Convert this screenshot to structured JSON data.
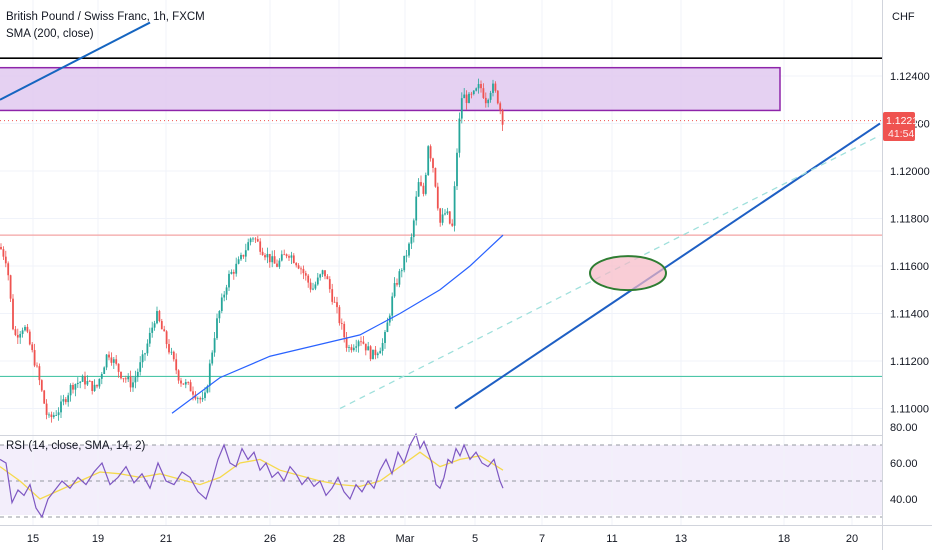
{
  "header": {
    "symbol_line": "British Pound / Swiss Franc, 1h, FXCM",
    "sma_label": "SMA (200, close)",
    "currency": "CHF",
    "rsi_label": "RSI (14, close, SMA, 14, 2)"
  },
  "price_badge": {
    "price": "1.12212",
    "countdown": "41:54",
    "color": "#ef5350"
  },
  "chart_data": [
    {
      "type": "candlestick",
      "title": "British Pound / Swiss Franc, 1h, FXCM",
      "y_axis": {
        "ticks": [
          "1.12400",
          "1.12200",
          "1.12000",
          "1.11800",
          "1.11600",
          "1.11400",
          "1.11200",
          "1.11000"
        ]
      },
      "x_axis": {
        "ticks": [
          "15",
          "19",
          "21",
          "26",
          "28",
          "Mar",
          "5",
          "7",
          "11",
          "13",
          "18",
          "20"
        ]
      },
      "last_price": 1.12212,
      "indicators": [
        "SMA (200, close)"
      ],
      "price_path": [
        [
          0,
          1.1168
        ],
        [
          7,
          1.1162
        ],
        [
          14,
          1.113
        ],
        [
          24,
          1.1135
        ],
        [
          36,
          1.1118
        ],
        [
          48,
          1.1095
        ],
        [
          60,
          1.11
        ],
        [
          72,
          1.111
        ],
        [
          84,
          1.1112
        ],
        [
          96,
          1.1108
        ],
        [
          108,
          1.1124
        ],
        [
          120,
          1.1115
        ],
        [
          132,
          1.111
        ],
        [
          144,
          1.1122
        ],
        [
          156,
          1.114
        ],
        [
          168,
          1.1126
        ],
        [
          180,
          1.1112
        ],
        [
          192,
          1.1108
        ],
        [
          204,
          1.1102
        ],
        [
          216,
          1.1135
        ],
        [
          228,
          1.1155
        ],
        [
          240,
          1.1162
        ],
        [
          252,
          1.1173
        ],
        [
          264,
          1.1166
        ],
        [
          276,
          1.116
        ],
        [
          288,
          1.1166
        ],
        [
          300,
          1.116
        ],
        [
          312,
          1.115
        ],
        [
          324,
          1.1158
        ],
        [
          336,
          1.1142
        ],
        [
          348,
          1.1125
        ],
        [
          360,
          1.113
        ],
        [
          372,
          1.1122
        ],
        [
          384,
          1.1128
        ],
        [
          394,
          1.115
        ],
        [
          404,
          1.1162
        ],
        [
          412,
          1.1172
        ],
        [
          418,
          1.1195
        ],
        [
          424,
          1.119
        ],
        [
          428,
          1.1212
        ],
        [
          434,
          1.12
        ],
        [
          440,
          1.1178
        ],
        [
          446,
          1.1183
        ],
        [
          452,
          1.1175
        ],
        [
          458,
          1.1215
        ],
        [
          462,
          1.1232
        ],
        [
          468,
          1.123
        ],
        [
          474,
          1.1232
        ],
        [
          480,
          1.1236
        ],
        [
          486,
          1.123
        ],
        [
          492,
          1.1236
        ],
        [
          498,
          1.123
        ],
        [
          503,
          1.1221
        ]
      ],
      "sma_path": [
        [
          172,
          1.1098
        ],
        [
          220,
          1.1113
        ],
        [
          270,
          1.1122
        ],
        [
          320,
          1.1127
        ],
        [
          360,
          1.1131
        ],
        [
          400,
          1.114
        ],
        [
          440,
          1.115
        ],
        [
          470,
          1.116
        ],
        [
          503,
          1.1173
        ]
      ],
      "annotations": {
        "resistance_zone": [
          1.12255,
          1.12435
        ],
        "horizontal_lines": [
          {
            "price": 1.12475,
            "color": "#000000"
          },
          {
            "price": 1.1173,
            "color": "#f4a4a4"
          },
          {
            "price": 1.11135,
            "color": "#4dc6a8"
          }
        ],
        "trendlines": [
          {
            "from": [
              0,
              1.123
            ],
            "to": [
              150,
              1.12625
            ],
            "color": "#1565c0",
            "style": "solid"
          },
          {
            "from": [
              455,
              1.11
            ],
            "to": [
              880,
              1.122
            ],
            "color": "#1e5fc4",
            "style": "solid"
          },
          {
            "from": [
              340,
              1.11
            ],
            "to": [
              880,
              1.1215
            ],
            "color": "#9fe0dc",
            "style": "dashed"
          }
        ],
        "target_ellipse_center": [
          628,
          1.1157
        ]
      }
    },
    {
      "type": "line",
      "title": "RSI (14, close, SMA, 14, 2)",
      "y_axis": {
        "ticks": [
          "80.00",
          "60.00",
          "40.00"
        ]
      },
      "bands": [
        70,
        50,
        30
      ],
      "rsi_path": [
        [
          0,
          62
        ],
        [
          6,
          60
        ],
        [
          12,
          38
        ],
        [
          18,
          45
        ],
        [
          24,
          42
        ],
        [
          30,
          48
        ],
        [
          36,
          35
        ],
        [
          42,
          30
        ],
        [
          48,
          40
        ],
        [
          55,
          45
        ],
        [
          62,
          50
        ],
        [
          70,
          46
        ],
        [
          78,
          52
        ],
        [
          86,
          48
        ],
        [
          94,
          55
        ],
        [
          102,
          60
        ],
        [
          110,
          48
        ],
        [
          118,
          52
        ],
        [
          126,
          58
        ],
        [
          134,
          49
        ],
        [
          142,
          54
        ],
        [
          150,
          46
        ],
        [
          158,
          60
        ],
        [
          166,
          50
        ],
        [
          174,
          48
        ],
        [
          182,
          55
        ],
        [
          190,
          52
        ],
        [
          198,
          44
        ],
        [
          206,
          40
        ],
        [
          212,
          50
        ],
        [
          218,
          62
        ],
        [
          224,
          70
        ],
        [
          230,
          60
        ],
        [
          236,
          58
        ],
        [
          242,
          68
        ],
        [
          248,
          62
        ],
        [
          254,
          66
        ],
        [
          260,
          56
        ],
        [
          266,
          60
        ],
        [
          272,
          52
        ],
        [
          278,
          55
        ],
        [
          284,
          50
        ],
        [
          290,
          58
        ],
        [
          296,
          54
        ],
        [
          302,
          48
        ],
        [
          308,
          52
        ],
        [
          314,
          47
        ],
        [
          320,
          50
        ],
        [
          326,
          42
        ],
        [
          332,
          46
        ],
        [
          338,
          52
        ],
        [
          344,
          44
        ],
        [
          350,
          40
        ],
        [
          356,
          48
        ],
        [
          362,
          44
        ],
        [
          368,
          50
        ],
        [
          374,
          46
        ],
        [
          380,
          56
        ],
        [
          386,
          62
        ],
        [
          392,
          54
        ],
        [
          398,
          66
        ],
        [
          404,
          60
        ],
        [
          410,
          70
        ],
        [
          416,
          76
        ],
        [
          420,
          68
        ],
        [
          424,
          72
        ],
        [
          428,
          66
        ],
        [
          432,
          60
        ],
        [
          436,
          48
        ],
        [
          440,
          46
        ],
        [
          444,
          52
        ],
        [
          448,
          62
        ],
        [
          452,
          60
        ],
        [
          456,
          68
        ],
        [
          460,
          64
        ],
        [
          464,
          70
        ],
        [
          470,
          62
        ],
        [
          476,
          66
        ],
        [
          482,
          60
        ],
        [
          488,
          58
        ],
        [
          494,
          62
        ],
        [
          500,
          50
        ],
        [
          503,
          46
        ]
      ],
      "rsi_sma_path": [
        [
          0,
          58
        ],
        [
          20,
          50
        ],
        [
          40,
          40
        ],
        [
          60,
          45
        ],
        [
          80,
          50
        ],
        [
          100,
          55
        ],
        [
          120,
          54
        ],
        [
          140,
          52
        ],
        [
          160,
          54
        ],
        [
          180,
          51
        ],
        [
          200,
          48
        ],
        [
          220,
          52
        ],
        [
          240,
          60
        ],
        [
          260,
          62
        ],
        [
          280,
          56
        ],
        [
          300,
          53
        ],
        [
          320,
          50
        ],
        [
          340,
          48
        ],
        [
          360,
          47
        ],
        [
          380,
          50
        ],
        [
          400,
          58
        ],
        [
          420,
          66
        ],
        [
          440,
          58
        ],
        [
          460,
          62
        ],
        [
          480,
          64
        ],
        [
          503,
          56
        ]
      ]
    }
  ]
}
